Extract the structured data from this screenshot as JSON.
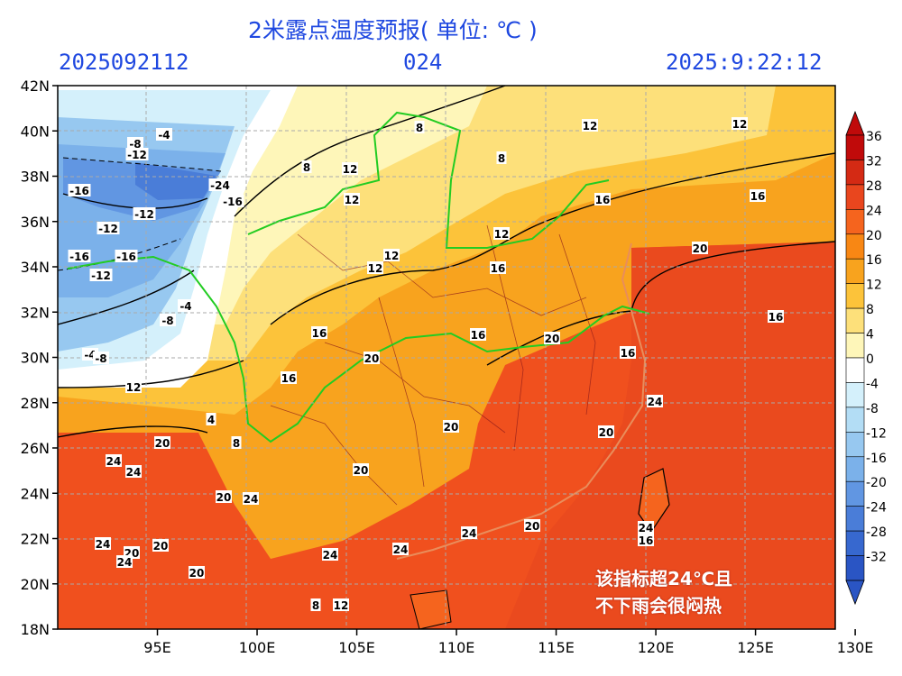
{
  "header": {
    "title": "2米露点温度预报( 单位: ℃ )",
    "run_time": "2025092112",
    "lead": "024",
    "valid_time": "2025:9:22:12"
  },
  "map": {
    "lat_labels": [
      "42N",
      "40N",
      "38N",
      "36N",
      "34N",
      "32N",
      "30N",
      "28N",
      "26N",
      "24N",
      "22N",
      "20N",
      "18N"
    ],
    "lon_labels": [
      "95E",
      "100E",
      "105E",
      "110E",
      "115E",
      "120E",
      "125E",
      "130E"
    ],
    "contour_labels": [
      "-16",
      "-12",
      "-8",
      "-4",
      "-24",
      "-16",
      "-12",
      "-12",
      "-16",
      "-16",
      "-12",
      "-8",
      "-4",
      "-4",
      "-8",
      "8",
      "8",
      "12",
      "12",
      "8",
      "12",
      "12",
      "12",
      "16",
      "16",
      "12",
      "12",
      "12",
      "16",
      "20",
      "16",
      "16",
      "20",
      "16",
      "16",
      "20",
      "20",
      "20",
      "20",
      "24",
      "20",
      "24",
      "24",
      "20",
      "24",
      "24",
      "20",
      "20",
      "24",
      "20",
      "24",
      "24",
      "24",
      "20",
      "24",
      "16",
      "12",
      "8",
      "4",
      "8",
      "12",
      "16"
    ],
    "annotation_line1": "该指标超24℃且",
    "annotation_line2": "不下雨会很闷热"
  },
  "legend": {
    "labels": [
      "36",
      "32",
      "28",
      "24",
      "20",
      "16",
      "12",
      "8",
      "4",
      "0",
      "-4",
      "-8",
      "-12",
      "-16",
      "-20",
      "-24",
      "-28",
      "-32"
    ],
    "colors": [
      "#c00a0a",
      "#d42a14",
      "#e9461e",
      "#f5641e",
      "#f88714",
      "#f8a31e",
      "#fcc33a",
      "#fde07a",
      "#fef6b9",
      "#ffffff",
      "#d4f0fb",
      "#b3ddf5",
      "#97c8f0",
      "#7bb1ea",
      "#6196e2",
      "#4a7dd8",
      "#3768cf",
      "#2a55c4"
    ]
  },
  "colors": {
    "header_text": "#1f48e0",
    "warm": "#f5641e",
    "hot": "#ea4a1e",
    "orange": "#f8a31e",
    "yellow": "#fde07a",
    "pale": "#fef6b9",
    "cold": "#7bb1ea",
    "river": "#22cc22"
  }
}
